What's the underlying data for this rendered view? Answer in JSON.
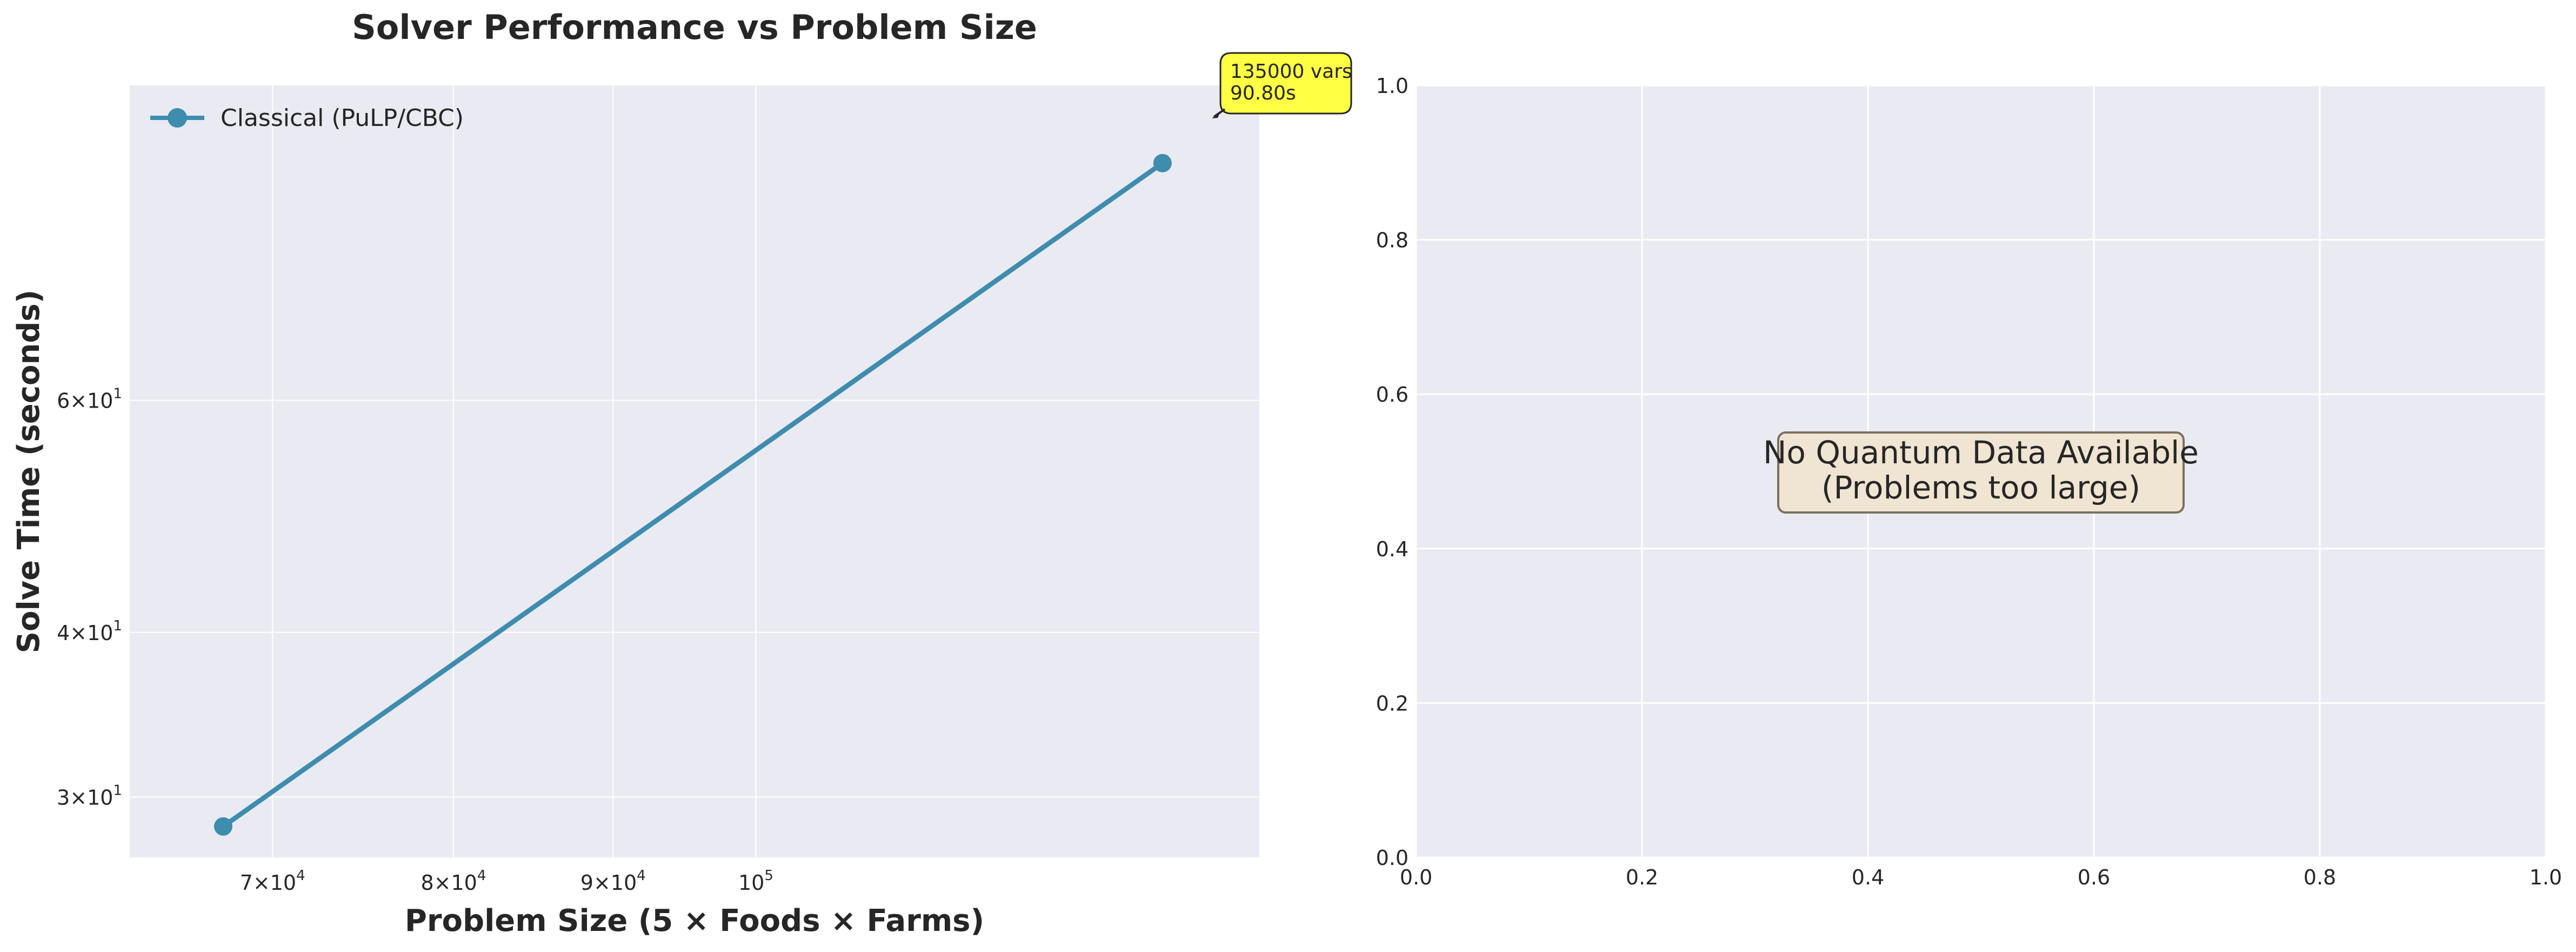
{
  "chart_data": [
    {
      "type": "line",
      "title": "Solver Performance vs Problem Size",
      "xlabel": "Problem Size (5 × Foods × Farms)",
      "ylabel": "Solve Time (seconds)",
      "xscale": "log",
      "yscale": "log",
      "xlim": [
        63000,
        145000
      ],
      "ylim": [
        27,
        104
      ],
      "grid": true,
      "legend_position": "upper left",
      "xticks": [
        {
          "value": 70000,
          "mant": "7",
          "exp": "4"
        },
        {
          "value": 80000,
          "mant": "8",
          "exp": "4"
        },
        {
          "value": 90000,
          "mant": "9",
          "exp": "4"
        },
        {
          "value": 100000,
          "mant": "",
          "exp": "5"
        }
      ],
      "yticks": [
        {
          "value": 30,
          "mant": "3",
          "exp": "1"
        },
        {
          "value": 40,
          "mant": "4",
          "exp": "1"
        },
        {
          "value": 60,
          "mant": "6",
          "exp": "1"
        }
      ],
      "series": [
        {
          "name": "Classical (PuLP/CBC)",
          "color": "#3e8cae",
          "x": [
            67500,
            135000
          ],
          "y": [
            28.5,
            90.8
          ]
        }
      ],
      "annotation": {
        "x": 135000,
        "y": 90.8,
        "lines": [
          "135000 vars",
          "90.80s"
        ],
        "bg": "#ffff44"
      }
    },
    {
      "type": "line",
      "title": "",
      "xlabel": "",
      "ylabel": "",
      "xlim": [
        0.0,
        1.0
      ],
      "ylim": [
        0.0,
        1.0
      ],
      "grid": true,
      "xticks": [
        "0.0",
        "0.2",
        "0.4",
        "0.6",
        "0.8",
        "1.0"
      ],
      "yticks": [
        "0.0",
        "0.2",
        "0.4",
        "0.6",
        "0.8",
        "1.0"
      ],
      "series": [],
      "message": [
        "No Quantum Data Available",
        "(Problems too large)"
      ],
      "message_bg": "#f0e4d2"
    }
  ],
  "colors": {
    "axes_bg": "#eaeaf2",
    "grid": "#ffffff",
    "text": "#262626"
  }
}
